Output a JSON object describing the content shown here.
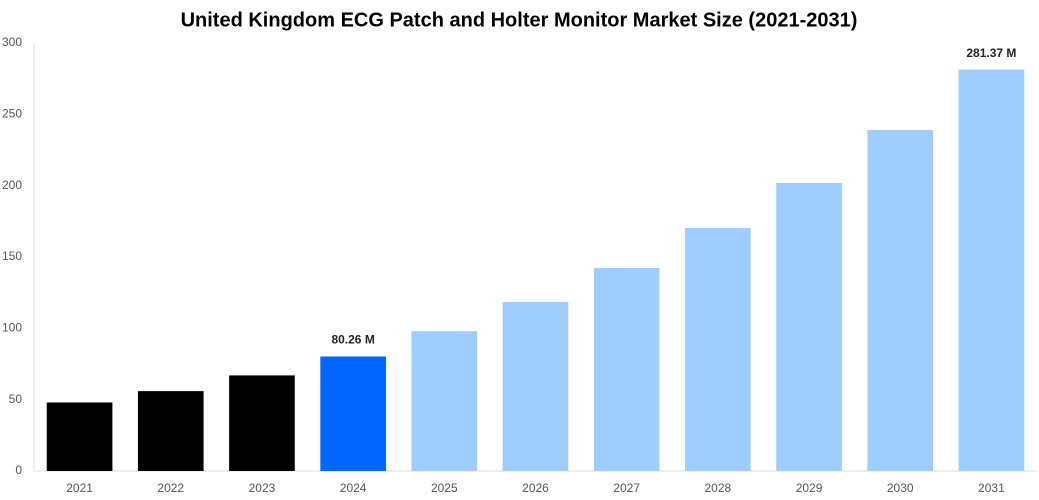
{
  "chart_data": {
    "type": "bar",
    "title": "United Kingdom ECG Patch and Holter Monitor Market Size (2021-2031)",
    "categories": [
      "2021",
      "2022",
      "2023",
      "2024",
      "2025",
      "2026",
      "2027",
      "2028",
      "2029",
      "2030",
      "2031"
    ],
    "values": [
      48,
      56,
      67,
      80.26,
      98,
      118.5,
      142.3,
      170.3,
      201.9,
      239,
      281.37
    ],
    "value_labels": [
      null,
      null,
      null,
      "80.26 M",
      null,
      null,
      null,
      null,
      null,
      null,
      "281.37 M"
    ],
    "colors": [
      "#000000",
      "#000000",
      "#000000",
      "#0066ff",
      "#a0cdff",
      "#a0cdff",
      "#a0cdff",
      "#a0cdff",
      "#a0cdff",
      "#a0cdff",
      "#a0cdff"
    ],
    "ylim": [
      0,
      300
    ],
    "yticks": [
      0,
      50,
      100,
      150,
      200,
      250,
      300
    ],
    "grid": false
  }
}
